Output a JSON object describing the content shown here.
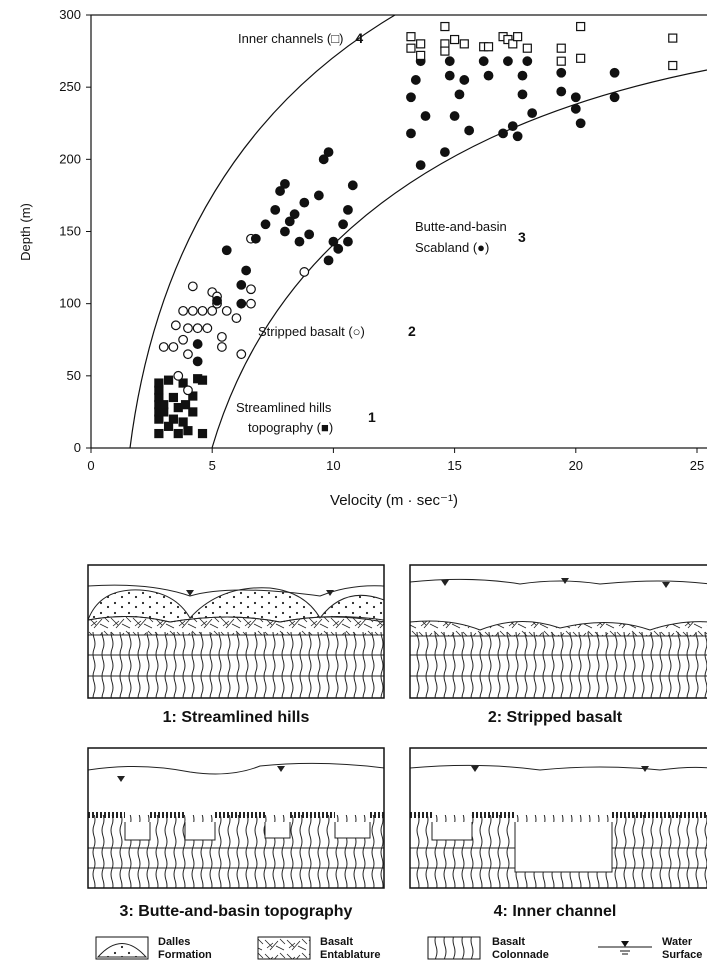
{
  "chart_data": {
    "type": "scatter",
    "ylabel": "Depth (m)",
    "xlabel": "Velocity (m · sec⁻¹)",
    "xlim": [
      0,
      25
    ],
    "ylim": [
      0,
      300
    ],
    "xticks": [
      0,
      5,
      10,
      15,
      20,
      25
    ],
    "yticks": [
      0,
      50,
      100,
      150,
      200,
      250,
      300
    ],
    "series": [
      {
        "label": [
          "Streamlined hills",
          "topography (■)"
        ],
        "number": "1",
        "marker": "square",
        "filled": true,
        "x": [
          2.8,
          2.8,
          2.8,
          2.8,
          2.8,
          2.8,
          2.8,
          3.0,
          3.0,
          3.2,
          3.2,
          3.4,
          3.4,
          3.6,
          3.6,
          3.8,
          3.8,
          3.9,
          4.0,
          4.2,
          4.2,
          4.4,
          4.6,
          4.6
        ],
        "values": [
          10,
          20,
          25,
          30,
          35,
          40,
          45,
          25,
          30,
          15,
          47,
          20,
          35,
          10,
          28,
          18,
          45,
          30,
          12,
          25,
          36,
          48,
          10,
          47
        ]
      },
      {
        "label": [
          "Stripped basalt (○)"
        ],
        "number": "2",
        "marker": "circle",
        "filled": false,
        "x": [
          3.0,
          3.4,
          3.5,
          3.6,
          3.8,
          3.8,
          4.0,
          4.0,
          4.0,
          4.2,
          4.2,
          4.4,
          4.6,
          4.8,
          5.0,
          5.0,
          5.2,
          5.2,
          5.4,
          5.4,
          5.6,
          6.0,
          6.2,
          6.6,
          6.6,
          6.6,
          8.8
        ],
        "values": [
          70,
          70,
          85,
          50,
          75,
          95,
          40,
          65,
          83,
          95,
          112,
          83,
          95,
          83,
          108,
          95,
          100,
          105,
          70,
          77,
          95,
          90,
          65,
          100,
          110,
          145,
          122
        ]
      },
      {
        "label": [
          "Butte-and-basin",
          "Scabland (●)"
        ],
        "number": "3",
        "marker": "circle",
        "filled": true,
        "x": [
          4.4,
          4.4,
          5.2,
          5.6,
          6.2,
          6.2,
          6.4,
          6.8,
          7.2,
          7.6,
          7.8,
          8.0,
          8.0,
          8.2,
          8.4,
          8.6,
          8.8,
          9.0,
          9.4,
          9.6,
          9.8,
          9.8,
          10.0,
          10.2,
          10.4,
          10.6,
          10.6,
          10.8,
          13.2,
          13.2,
          13.4,
          13.6,
          13.6,
          13.8,
          14.6,
          14.8,
          14.8,
          15.0,
          15.2,
          15.4,
          15.6,
          16.2,
          16.4,
          17.0,
          17.2,
          17.4,
          17.6,
          17.8,
          17.8,
          18.0,
          18.2,
          19.4,
          19.4,
          20.0,
          20.0,
          20.2,
          21.6,
          21.6
        ],
        "values": [
          60,
          72,
          102,
          137,
          100,
          113,
          123,
          145,
          155,
          165,
          178,
          183,
          150,
          157,
          162,
          143,
          170,
          148,
          175,
          200,
          205,
          130,
          143,
          138,
          155,
          165,
          143,
          182,
          218,
          243,
          255,
          196,
          268,
          230,
          205,
          258,
          268,
          230,
          245,
          255,
          220,
          268,
          258,
          218,
          268,
          223,
          216,
          245,
          258,
          268,
          232,
          260,
          247,
          235,
          243,
          225,
          260,
          243
        ]
      },
      {
        "label": [
          "Inner channels (□)"
        ],
        "number": "4",
        "marker": "square",
        "filled": false,
        "x": [
          13.2,
          13.2,
          13.6,
          13.6,
          14.6,
          14.6,
          14.6,
          15.0,
          15.4,
          16.2,
          16.4,
          17.0,
          17.2,
          17.4,
          17.6,
          18.0,
          19.4,
          19.4,
          20.2,
          20.2,
          24.0,
          24.0
        ],
        "values": [
          285,
          277,
          272,
          280,
          292,
          280,
          275,
          283,
          280,
          278,
          278,
          285,
          283,
          280,
          285,
          277,
          277,
          268,
          292,
          270,
          284,
          265
        ]
      }
    ]
  },
  "diagrams": [
    {
      "title": "1: Streamlined hills"
    },
    {
      "title": "2: Stripped basalt"
    },
    {
      "title": "3: Butte-and-basin topography"
    },
    {
      "title": "4: Inner channel"
    }
  ],
  "legend": [
    {
      "label": [
        "Dalles",
        "Formation"
      ]
    },
    {
      "label": [
        "Basalt",
        "Entablature"
      ]
    },
    {
      "label": [
        "Basalt",
        "Colonnade"
      ]
    },
    {
      "label": [
        "Water",
        "Surface"
      ]
    }
  ]
}
